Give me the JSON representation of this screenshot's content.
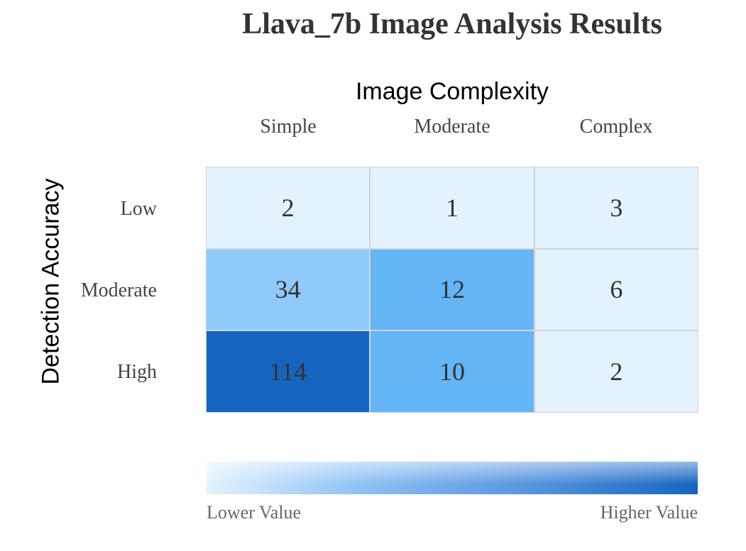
{
  "chart_data": {
    "type": "heatmap",
    "title": "Llava_7b Image Analysis Results",
    "xlabel": "Image Complexity",
    "ylabel": "Detection Accuracy",
    "columns": [
      "Simple",
      "Moderate",
      "Complex"
    ],
    "rows": [
      "Low",
      "Moderate",
      "High"
    ],
    "values": [
      [
        2,
        1,
        3
      ],
      [
        34,
        12,
        6
      ],
      [
        114,
        10,
        2
      ]
    ],
    "cell_colors": [
      [
        "#e3f2fd",
        "#e3f2fd",
        "#e3f2fd"
      ],
      [
        "#90caf9",
        "#64b5f6",
        "#e3f2fd"
      ],
      [
        "#1565c0",
        "#64b5f6",
        "#e3f2fd"
      ]
    ],
    "legend": {
      "low_label": "Lower Value",
      "high_label": "Higher Value",
      "low_color": "#e3f2fd",
      "high_color": "#1565c0"
    }
  }
}
